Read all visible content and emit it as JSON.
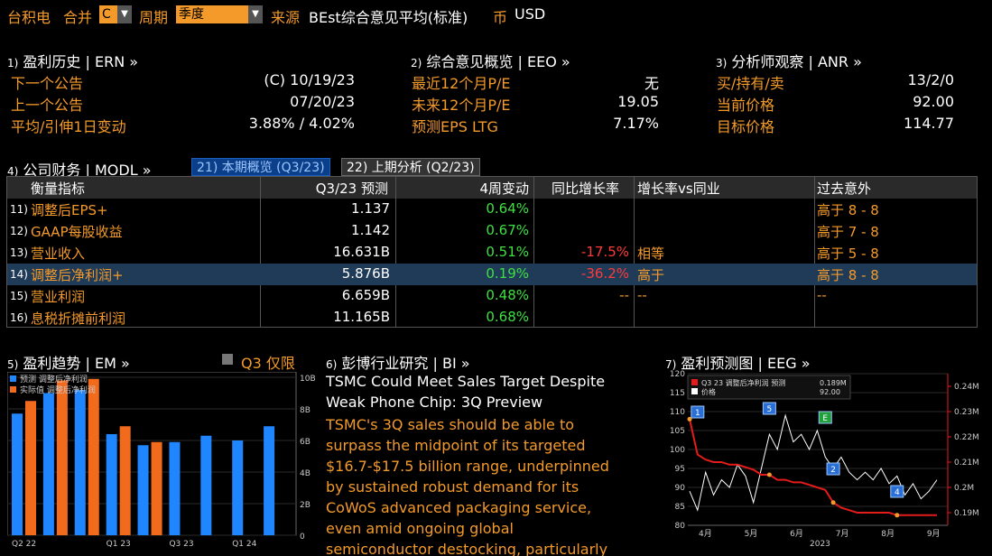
{
  "topbar": {
    "ticker": "台积电",
    "consolidation_label": "合并",
    "consolidation_value": "C",
    "period_label": "周期",
    "period_value": "季度",
    "source_label": "来源",
    "source_value": "BEst综合意见平均(标准)",
    "currency_label": "币",
    "currency_value": "USD"
  },
  "ern": {
    "num": "1)",
    "title": "盈利历史 | ERN »",
    "rows": [
      {
        "label": "下一个公告",
        "value": "(C)  10/19/23"
      },
      {
        "label": "上一个公告",
        "value": "07/20/23"
      },
      {
        "label": "平均/引伸1日变动",
        "value": "3.88% / 4.02%"
      }
    ]
  },
  "eeo": {
    "num": "2)",
    "title": "综合意见概览 | EEO »",
    "rows": [
      {
        "label": "最近12个月P/E",
        "value": "无"
      },
      {
        "label": "未来12个月P/E",
        "value": "19.05"
      },
      {
        "label": "预测EPS LTG",
        "value": "7.17%"
      }
    ]
  },
  "anr": {
    "num": "3)",
    "title": "分析师观察 | ANR »",
    "rows": [
      {
        "label": "买/持有/卖",
        "value": "13/2/0"
      },
      {
        "label": "当前价格",
        "value": "92.00"
      },
      {
        "label": "目标价格",
        "value": "114.77"
      }
    ]
  },
  "modl": {
    "num": "4)",
    "title": "公司财务 | MODL »",
    "tab_active": "21) 本期概览 (Q3/23)",
    "tab_inactive": "22) 上期分析 (Q2/23)",
    "headers": [
      "衡量指标",
      "Q3/23 预测",
      "4周变动",
      "同比增长率",
      "增长率vs同业",
      "过去意外"
    ],
    "rows": [
      {
        "num": "11)",
        "name": "调整后EPS+",
        "est": "1.137",
        "chg": "0.64%",
        "yoy": "",
        "peer": "",
        "surprise": "高于 8 - 8"
      },
      {
        "num": "12)",
        "name": "GAAP每股收益",
        "est": "1.142",
        "chg": "0.67%",
        "yoy": "",
        "peer": "",
        "surprise": "高于 7 - 8"
      },
      {
        "num": "13)",
        "name": "营业收入",
        "est": "16.631B",
        "chg": "0.51%",
        "yoy": "-17.5%",
        "peer": "相等",
        "surprise": "高于 5 - 8"
      },
      {
        "num": "14)",
        "name": "调整后净利润+",
        "est": "5.876B",
        "chg": "0.19%",
        "yoy": "-36.2%",
        "peer": "高于",
        "surprise": "高于 8 - 8"
      },
      {
        "num": "15)",
        "name": "营业利润",
        "est": "6.659B",
        "chg": "0.48%",
        "yoy": "--",
        "peer": "--",
        "surprise": "--"
      },
      {
        "num": "16)",
        "name": "息税折摊前利润",
        "est": "11.165B",
        "chg": "0.68%",
        "yoy": "",
        "peer": "",
        "surprise": ""
      }
    ]
  },
  "em": {
    "num": "5)",
    "title": "盈利趋势 | EM »",
    "toggle_label": "Q3 仅限",
    "legend": [
      "预测 调整后净利润",
      "实际值 调整后净利润"
    ]
  },
  "bi": {
    "num": "6)",
    "title": "彭博行业研究 | BI »",
    "headline_lines": [
      "TSMC Could Meet Sales Target Despite",
      "Weak Phone Chip: 3Q Preview"
    ],
    "body_lines": [
      "TSMC's 3Q sales should be able to",
      "surpass the midpoint of its targeted",
      "$16.7-$17.5 billion range, underpinned",
      "by sustained robust demand for its",
      "CoWoS advanced packaging service,",
      "even amid ongoing global",
      "semiconductor destocking, particularly"
    ]
  },
  "eeg": {
    "num": "7)",
    "title": "盈利预测图 | EEG »",
    "legend_1": "Q3 23 调整后净利润 预测",
    "legend_1_val": "0.189M",
    "legend_2": "价格",
    "legend_2_val": "92.00",
    "markers": [
      "1",
      "5",
      "E",
      "2",
      "4"
    ]
  },
  "colors": {
    "accent": "#f39a2a",
    "estimate_bar": "#1f86ff",
    "actual_bar": "#f26b1d",
    "positive": "#3ee042",
    "negative": "#ff3a3a"
  },
  "chart_data": [
    {
      "type": "bar",
      "title": "盈利趋势",
      "categories": [
        "Q2 22",
        "Q3 22",
        "Q4 22",
        "Q1 23",
        "Q2 23",
        "Q3 23",
        "Q4 23",
        "Q1 24",
        "Q2 24"
      ],
      "x_tick_labels": [
        "Q2 22",
        "Q1 23",
        "Q3 23",
        "Q1 24"
      ],
      "y_ticks": [
        "10B",
        "8B",
        "6B",
        "4B",
        "2B",
        "0"
      ],
      "ylim": [
        0,
        10
      ],
      "series": [
        {
          "name": "预测 调整后净利润",
          "values": [
            7.7,
            9.0,
            9.2,
            6.4,
            5.7,
            5.9,
            6.3,
            6.0,
            6.9
          ]
        },
        {
          "name": "实际值 调整后净利润",
          "values": [
            8.5,
            9.8,
            9.9,
            6.9,
            5.9,
            null,
            null,
            null,
            null
          ]
        }
      ]
    },
    {
      "type": "line",
      "title": "盈利预测图",
      "x_tick_labels": [
        "4月",
        "5月",
        "6月",
        "7月",
        "8月",
        "9月"
      ],
      "x_year": "2023",
      "left_axis_ticks": [
        "120",
        "115",
        "110",
        "105",
        "100",
        "95",
        "90",
        "85",
        "80"
      ],
      "right_axis_ticks": [
        "0.24M",
        "0.23M",
        "0.22M",
        "0.21M",
        "0.2M",
        "0.19M"
      ],
      "left_ylim": [
        80,
        120
      ],
      "right_ylim": [
        0.185,
        0.245
      ],
      "series": [
        {
          "name": "Q3 23 调整后净利润 预测",
          "axis": "right",
          "values": [
            0.227,
            0.213,
            0.211,
            0.21,
            0.21,
            0.209,
            0.209,
            0.208,
            0.207,
            0.205,
            0.205,
            0.203,
            0.203,
            0.202,
            0.202,
            0.201,
            0.2,
            0.199,
            0.194,
            0.192,
            0.191,
            0.19,
            0.19,
            0.19,
            0.19,
            0.19,
            0.189,
            0.189,
            0.189,
            0.189,
            0.189,
            0.189
          ]
        },
        {
          "name": "价格",
          "axis": "left",
          "values": [
            89,
            84,
            94,
            88,
            92,
            90,
            96,
            93,
            86,
            95,
            104,
            100,
            109,
            102,
            104,
            100,
            105,
            98,
            95,
            98,
            94,
            92,
            94,
            92,
            95,
            91,
            93,
            88,
            91,
            87,
            89,
            92
          ]
        }
      ]
    }
  ]
}
